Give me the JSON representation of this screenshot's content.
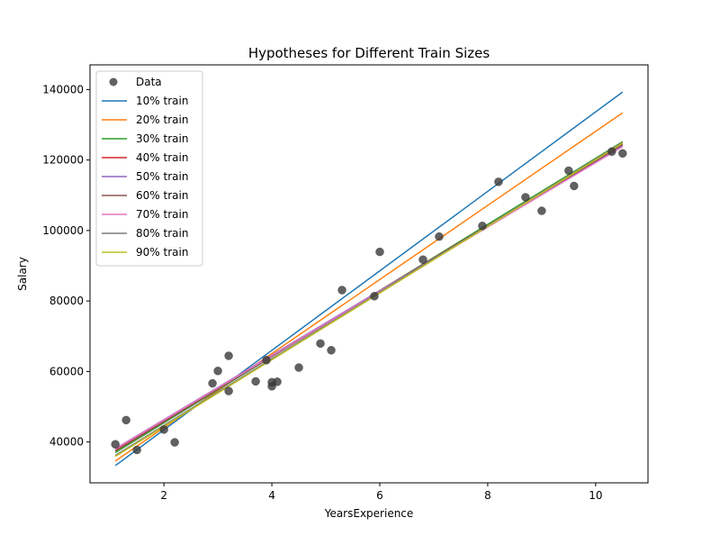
{
  "chart_data": {
    "type": "scatter",
    "title": "Hypotheses for Different Train Sizes",
    "xlabel": "YearsExperience",
    "ylabel": "Salary",
    "xlim": [
      0.63,
      10.97
    ],
    "ylim": [
      28400,
      147000
    ],
    "xticks": [
      2,
      4,
      6,
      8,
      10
    ],
    "yticks": [
      40000,
      60000,
      80000,
      100000,
      120000,
      140000
    ],
    "xtick_labels": [
      "2",
      "4",
      "6",
      "8",
      "10"
    ],
    "ytick_labels": [
      "40000",
      "60000",
      "80000",
      "100000",
      "120000",
      "140000"
    ],
    "grid": false,
    "legend_position": "top-left",
    "scatter": {
      "name": "Data",
      "color": "#3a3a3a",
      "points": [
        [
          1.1,
          39343
        ],
        [
          1.3,
          46205
        ],
        [
          1.5,
          37731
        ],
        [
          2.0,
          43525
        ],
        [
          2.2,
          39891
        ],
        [
          2.9,
          56642
        ],
        [
          3.0,
          60150
        ],
        [
          3.2,
          54445
        ],
        [
          3.2,
          64445
        ],
        [
          3.7,
          57189
        ],
        [
          3.9,
          63218
        ],
        [
          4.0,
          55794
        ],
        [
          4.0,
          56957
        ],
        [
          4.1,
          57081
        ],
        [
          4.5,
          61111
        ],
        [
          4.9,
          67938
        ],
        [
          5.1,
          66029
        ],
        [
          5.3,
          83088
        ],
        [
          5.9,
          81363
        ],
        [
          6.0,
          93940
        ],
        [
          6.8,
          91738
        ],
        [
          7.1,
          98273
        ],
        [
          7.9,
          101302
        ],
        [
          8.2,
          113812
        ],
        [
          8.7,
          109431
        ],
        [
          9.0,
          105582
        ],
        [
          9.5,
          116969
        ],
        [
          9.6,
          112635
        ],
        [
          10.3,
          122391
        ],
        [
          10.5,
          121872
        ]
      ]
    },
    "series": [
      {
        "name": "10% train",
        "color": "#1f77b4",
        "x": [
          1.1,
          10.5
        ],
        "y": [
          33300,
          139300
        ]
      },
      {
        "name": "20% train",
        "color": "#ff7f0e",
        "x": [
          1.1,
          10.5
        ],
        "y": [
          34600,
          133400
        ]
      },
      {
        "name": "30% train",
        "color": "#2ca02c",
        "x": [
          1.1,
          10.5
        ],
        "y": [
          37000,
          125200
        ]
      },
      {
        "name": "40% train",
        "color": "#d62728",
        "x": [
          1.1,
          10.5
        ],
        "y": [
          37600,
          124500
        ]
      },
      {
        "name": "50% train",
        "color": "#9467bd",
        "x": [
          1.1,
          10.5
        ],
        "y": [
          38100,
          124100
        ]
      },
      {
        "name": "60% train",
        "color": "#8c564b",
        "x": [
          1.1,
          10.5
        ],
        "y": [
          37400,
          124400
        ]
      },
      {
        "name": "70% train",
        "color": "#e377c2",
        "x": [
          1.1,
          10.5
        ],
        "y": [
          38000,
          123800
        ]
      },
      {
        "name": "80% train",
        "color": "#7f7f7f",
        "x": [
          1.1,
          10.5
        ],
        "y": [
          36200,
          125000
        ]
      },
      {
        "name": "90% train",
        "color": "#bcbd22",
        "x": [
          1.1,
          10.5
        ],
        "y": [
          35900,
          124800
        ]
      }
    ]
  }
}
